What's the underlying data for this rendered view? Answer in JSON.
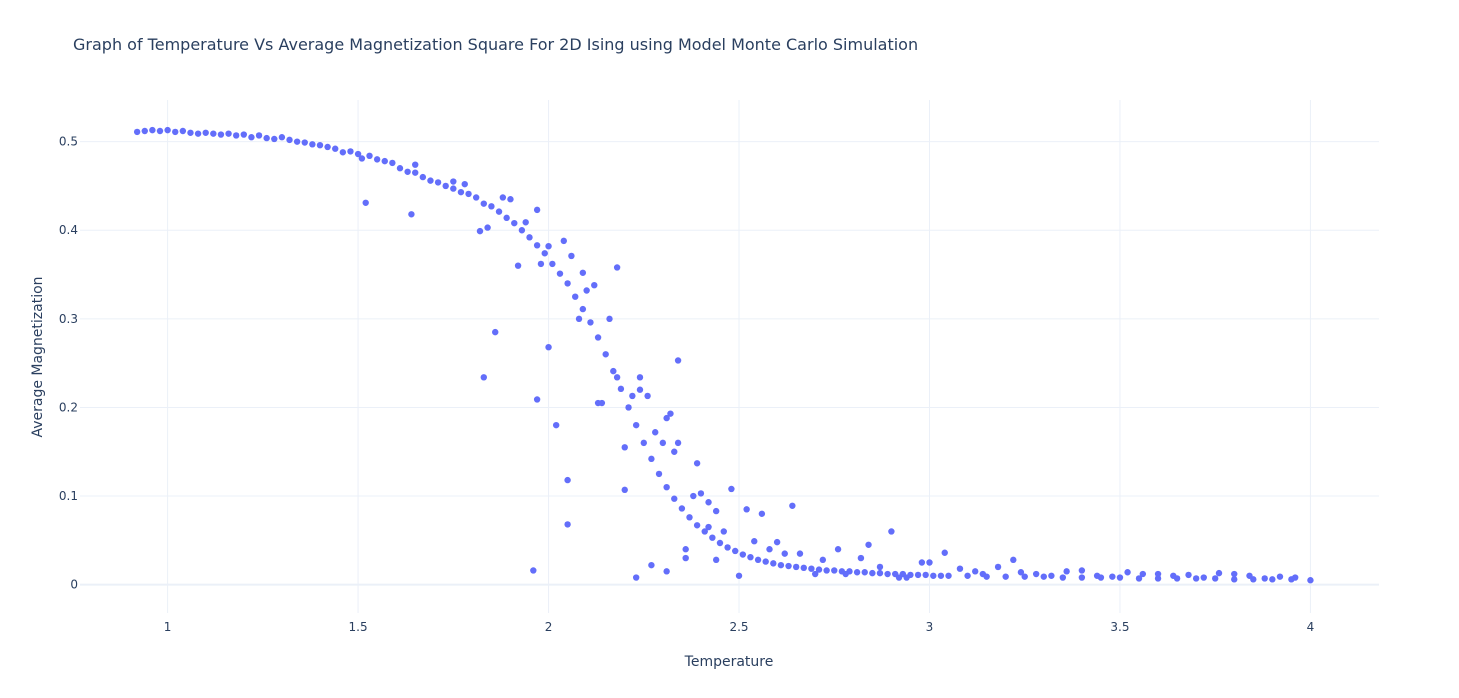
{
  "chart_data": {
    "type": "scatter",
    "title": "Graph of Temperature Vs Average Magnetization Square For 2D Ising using Model Monte Carlo Simulation",
    "xlabel": "Temperature",
    "ylabel": "Average Magnetization",
    "xlim": [
      0.77,
      4.18
    ],
    "ylim": [
      -0.032,
      0.547
    ],
    "x_ticks": [
      1,
      1.5,
      2,
      2.5,
      3,
      3.5,
      4
    ],
    "x_tick_labels": [
      "1",
      "1.5",
      "2",
      "2.5",
      "3",
      "3.5",
      "4"
    ],
    "y_ticks": [
      0,
      0.1,
      0.2,
      0.3,
      0.4,
      0.5
    ],
    "y_tick_labels": [
      "0",
      "0.1",
      "0.2",
      "0.3",
      "0.4",
      "0.5"
    ],
    "grid": true,
    "marker_color": "#636efa",
    "series": [
      {
        "x": [
          0.92,
          0.94,
          0.96,
          0.98,
          1.0,
          1.02,
          1.04,
          1.06,
          1.08,
          1.1,
          1.12,
          1.14,
          1.16,
          1.18,
          1.2,
          1.22,
          1.24,
          1.26,
          1.28,
          1.3,
          1.32,
          1.34,
          1.36,
          1.38,
          1.4,
          1.42,
          1.44,
          1.46,
          1.48,
          1.5,
          1.51,
          1.53,
          1.55,
          1.57,
          1.59,
          1.61,
          1.63,
          1.65,
          1.67,
          1.69,
          1.71,
          1.73,
          1.75,
          1.77,
          1.79,
          1.81,
          1.83,
          1.85,
          1.87,
          1.89,
          1.91,
          1.93,
          1.95,
          1.97,
          1.99,
          2.01,
          2.03,
          2.05,
          2.07,
          2.09,
          2.11,
          2.13,
          2.15,
          2.17,
          2.19,
          2.21,
          2.23,
          2.25,
          2.27,
          2.29,
          2.31,
          2.33,
          2.35,
          2.37,
          2.39,
          2.41,
          2.43,
          2.45,
          2.47,
          2.49,
          2.51,
          2.53,
          2.55,
          2.57,
          2.59,
          2.61,
          2.63,
          2.65,
          2.67,
          2.69,
          2.71,
          2.73,
          2.75,
          2.77,
          2.79,
          2.81,
          2.83,
          2.85,
          2.87,
          2.89,
          2.91,
          2.93,
          2.95,
          2.97,
          2.99,
          3.01,
          3.03,
          3.05,
          3.1,
          3.15,
          3.2,
          3.25,
          3.3,
          3.35,
          3.4,
          3.45,
          3.5,
          3.55,
          3.6,
          3.65,
          3.7,
          3.75,
          3.8,
          3.85,
          3.9,
          3.95,
          4.0,
          1.52,
          1.64,
          1.83,
          1.86,
          1.97,
          2.05,
          2.02,
          2.34,
          2.23,
          1.96,
          2.05,
          2.13,
          2.31,
          2.39,
          2.24,
          2.33,
          2.42,
          2.48,
          2.56,
          2.64,
          2.9,
          3.22,
          1.65,
          1.75,
          1.9,
          1.97,
          2.0,
          2.09,
          2.18,
          2.2,
          2.27,
          2.31,
          2.36,
          2.44,
          2.5,
          2.58,
          2.62,
          2.7,
          2.76,
          2.82,
          2.87,
          2.92,
          2.98,
          3.04,
          3.12,
          3.18,
          3.28,
          3.36,
          3.44,
          3.52,
          3.6,
          3.68,
          3.76,
          3.84,
          3.92,
          1.78,
          1.82,
          1.84,
          1.88,
          1.92,
          1.94,
          1.98,
          2.0,
          2.04,
          2.06,
          2.08,
          2.1,
          2.12,
          2.14,
          2.16,
          2.18,
          2.2,
          2.22,
          2.24,
          2.26,
          2.28,
          2.3,
          2.32,
          2.34,
          2.36,
          2.38,
          2.4,
          2.42,
          2.44,
          2.46,
          2.52,
          2.54,
          2.6,
          2.66,
          2.72,
          2.78,
          2.84,
          2.94,
          3.0,
          3.08,
          3.14,
          3.24,
          3.32,
          3.4,
          3.48,
          3.56,
          3.64,
          3.72,
          3.8,
          3.88,
          3.96
        ],
        "y": [
          0.511,
          0.512,
          0.513,
          0.512,
          0.513,
          0.511,
          0.512,
          0.51,
          0.509,
          0.51,
          0.509,
          0.508,
          0.509,
          0.507,
          0.508,
          0.505,
          0.507,
          0.504,
          0.503,
          0.505,
          0.502,
          0.5,
          0.499,
          0.497,
          0.496,
          0.494,
          0.492,
          0.488,
          0.489,
          0.486,
          0.481,
          0.484,
          0.48,
          0.478,
          0.476,
          0.47,
          0.466,
          0.465,
          0.46,
          0.456,
          0.454,
          0.45,
          0.447,
          0.443,
          0.441,
          0.437,
          0.43,
          0.427,
          0.421,
          0.414,
          0.408,
          0.4,
          0.392,
          0.383,
          0.374,
          0.362,
          0.351,
          0.34,
          0.325,
          0.311,
          0.296,
          0.279,
          0.26,
          0.241,
          0.221,
          0.2,
          0.18,
          0.16,
          0.142,
          0.125,
          0.11,
          0.097,
          0.086,
          0.076,
          0.067,
          0.06,
          0.053,
          0.047,
          0.042,
          0.038,
          0.034,
          0.031,
          0.028,
          0.026,
          0.024,
          0.022,
          0.021,
          0.02,
          0.019,
          0.018,
          0.017,
          0.016,
          0.016,
          0.015,
          0.015,
          0.014,
          0.014,
          0.013,
          0.013,
          0.012,
          0.012,
          0.012,
          0.011,
          0.011,
          0.011,
          0.01,
          0.01,
          0.01,
          0.01,
          0.009,
          0.009,
          0.009,
          0.009,
          0.008,
          0.008,
          0.008,
          0.008,
          0.007,
          0.007,
          0.007,
          0.007,
          0.007,
          0.006,
          0.006,
          0.006,
          0.006,
          0.005,
          0.431,
          0.418,
          0.234,
          0.285,
          0.209,
          0.068,
          0.18,
          0.253,
          0.008,
          0.016,
          0.118,
          0.205,
          0.188,
          0.137,
          0.22,
          0.15,
          0.065,
          0.108,
          0.08,
          0.089,
          0.06,
          0.028,
          0.474,
          0.455,
          0.435,
          0.423,
          0.382,
          0.352,
          0.358,
          0.107,
          0.022,
          0.015,
          0.03,
          0.028,
          0.01,
          0.04,
          0.035,
          0.012,
          0.04,
          0.03,
          0.02,
          0.008,
          0.025,
          0.036,
          0.015,
          0.02,
          0.012,
          0.015,
          0.01,
          0.014,
          0.012,
          0.011,
          0.013,
          0.01,
          0.009,
          0.452,
          0.399,
          0.403,
          0.437,
          0.36,
          0.409,
          0.362,
          0.268,
          0.388,
          0.371,
          0.3,
          0.332,
          0.338,
          0.205,
          0.3,
          0.234,
          0.155,
          0.213,
          0.234,
          0.213,
          0.172,
          0.16,
          0.193,
          0.16,
          0.04,
          0.1,
          0.103,
          0.093,
          0.083,
          0.06,
          0.085,
          0.049,
          0.048,
          0.035,
          0.028,
          0.012,
          0.045,
          0.008,
          0.025,
          0.018,
          0.012,
          0.014,
          0.01,
          0.016,
          0.009,
          0.012,
          0.01,
          0.008,
          0.012,
          0.007,
          0.008
        ]
      }
    ]
  }
}
